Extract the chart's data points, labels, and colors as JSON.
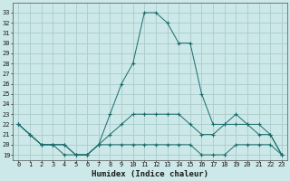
{
  "xlabel": "Humidex (Indice chaleur)",
  "background_color": "#cce8e8",
  "grid_color": "#aacccc",
  "line_color": "#1a6b6b",
  "x_ticks": [
    0,
    1,
    2,
    3,
    4,
    5,
    6,
    7,
    8,
    9,
    10,
    11,
    12,
    13,
    14,
    15,
    16,
    17,
    18,
    19,
    20,
    21,
    22,
    23
  ],
  "y_ticks": [
    19,
    20,
    21,
    22,
    23,
    24,
    25,
    26,
    27,
    28,
    29,
    30,
    31,
    32,
    33
  ],
  "ylim": [
    18.5,
    34.0
  ],
  "xlim": [
    -0.5,
    23.5
  ],
  "series": {
    "high": [
      22,
      21,
      20,
      20,
      20,
      19,
      19,
      20,
      23,
      26,
      28,
      33,
      33,
      32,
      30,
      30,
      25,
      22,
      22,
      23,
      22,
      22,
      21,
      19
    ],
    "low": [
      22,
      21,
      20,
      20,
      19,
      19,
      19,
      20,
      20,
      20,
      20,
      20,
      20,
      20,
      20,
      20,
      19,
      19,
      19,
      20,
      20,
      20,
      20,
      19
    ],
    "mid": [
      22,
      21,
      20,
      20,
      20,
      19,
      19,
      20,
      21,
      22,
      23,
      23,
      23,
      23,
      23,
      22,
      21,
      21,
      22,
      22,
      22,
      21,
      21,
      19
    ]
  }
}
